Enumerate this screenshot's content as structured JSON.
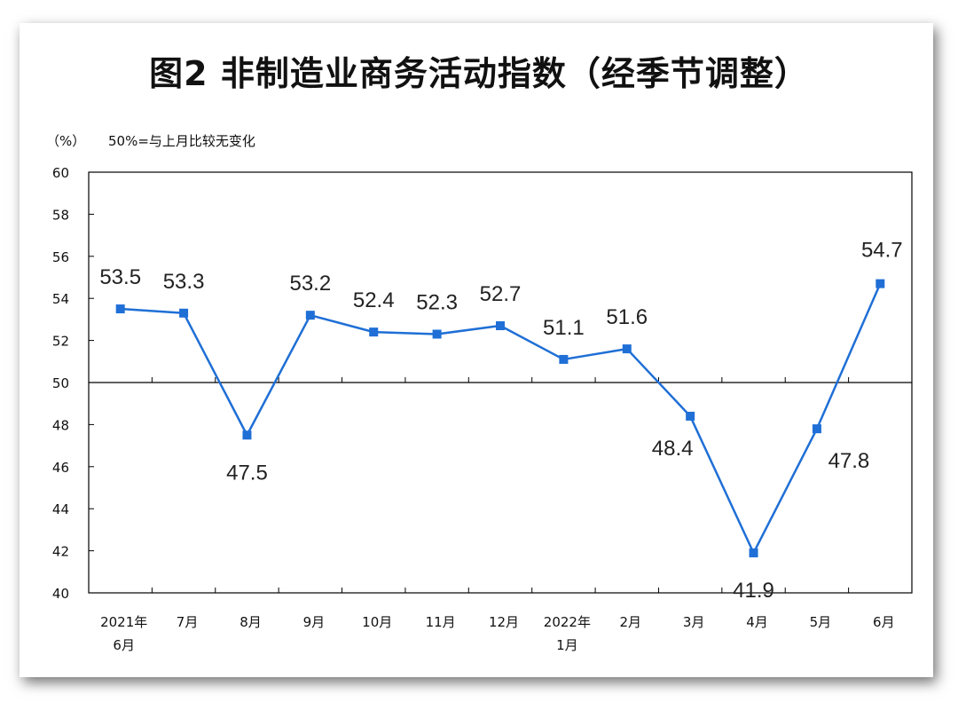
{
  "chart_data": {
    "type": "line",
    "title": "图2  非制造业商务活动指数（经季节调整）",
    "unit_label": "（%）",
    "note": "50%=与上月比较无变化",
    "ylim": [
      40,
      60
    ],
    "y_ticks": [
      40,
      42,
      44,
      46,
      48,
      50,
      52,
      54,
      56,
      58,
      60
    ],
    "reference_line": 50,
    "categories": [
      [
        "2021年",
        "6月"
      ],
      [
        "7月"
      ],
      [
        "8月"
      ],
      [
        "9月"
      ],
      [
        "10月"
      ],
      [
        "11月"
      ],
      [
        "12月"
      ],
      [
        "2022年",
        "1月"
      ],
      [
        "2月"
      ],
      [
        "3月"
      ],
      [
        "4月"
      ],
      [
        "5月"
      ],
      [
        "6月"
      ]
    ],
    "series": [
      {
        "values": [
          53.5,
          53.3,
          47.5,
          53.2,
          52.4,
          52.3,
          52.7,
          51.1,
          51.6,
          48.4,
          41.9,
          47.8,
          54.7
        ],
        "color": "#1f6fd6"
      }
    ],
    "grid": false
  }
}
